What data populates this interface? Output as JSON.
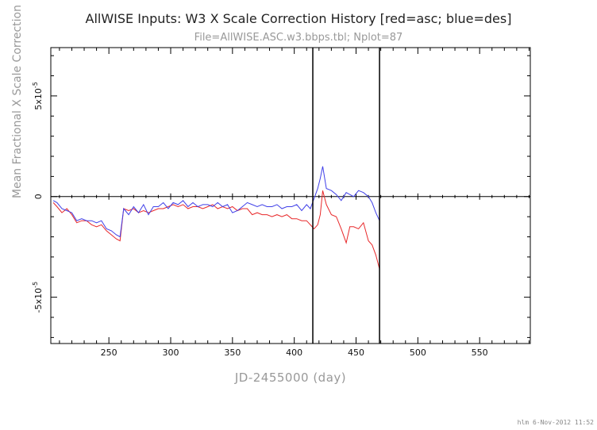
{
  "chart_data": {
    "type": "line",
    "title": "AllWISE Inputs: W3 X Scale Correction History [red=asc; blue=des]",
    "subtitle": "File=AllWISE.ASC.w3.bbps.tbl; Nplot=87",
    "xlabel": "JD-2455000 (day)",
    "ylabel": "Mean Fractional X Scale Correction",
    "xlim": [
      203,
      591
    ],
    "ylim": [
      -7.3e-05,
      7.4e-05
    ],
    "x_ticks": [
      250,
      300,
      350,
      400,
      450,
      500,
      550
    ],
    "y_tick_labels": [
      {
        "value": 5e-05,
        "mantissa": "5x10",
        "exp": "-5"
      },
      {
        "value": 0,
        "mantissa": "0",
        "exp": ""
      },
      {
        "value": -5e-05,
        "mantissa": "-5x10",
        "exp": "-5"
      }
    ],
    "vertical_lines": [
      415,
      469
    ],
    "series": [
      {
        "name": "asc",
        "color": "#e8282a",
        "x": [
          205,
          208,
          212,
          216,
          220,
          224,
          228,
          232,
          236,
          240,
          244,
          248,
          252,
          256,
          259,
          262,
          266,
          270,
          274,
          278,
          282,
          286,
          290,
          294,
          298,
          302,
          306,
          310,
          314,
          318,
          322,
          326,
          330,
          334,
          338,
          342,
          346,
          350,
          354,
          358,
          362,
          366,
          370,
          374,
          378,
          382,
          386,
          390,
          394,
          398,
          402,
          406,
          410,
          413,
          416,
          419,
          421,
          423,
          426,
          430,
          434,
          438,
          442,
          445,
          448,
          452,
          456,
          460,
          463,
          466,
          469
        ],
        "y": [
          -3e-06,
          -5e-06,
          -8e-06,
          -6e-06,
          -9e-06,
          -1.3e-05,
          -1.2e-05,
          -1.2e-05,
          -1.4e-05,
          -1.5e-05,
          -1.4e-05,
          -1.7e-05,
          -1.9e-05,
          -2.1e-05,
          -2.2e-05,
          -6e-06,
          -7e-06,
          -6e-06,
          -8e-06,
          -7e-06,
          -8e-06,
          -7e-06,
          -6e-06,
          -6e-06,
          -5e-06,
          -4e-06,
          -5e-06,
          -4e-06,
          -6e-06,
          -5e-06,
          -5e-06,
          -6e-06,
          -5e-06,
          -4e-06,
          -6e-06,
          -5e-06,
          -6e-06,
          -5e-06,
          -7e-06,
          -6e-06,
          -6e-06,
          -9e-06,
          -8e-06,
          -9e-06,
          -9e-06,
          -1e-05,
          -9e-06,
          -1e-05,
          -9e-06,
          -1.1e-05,
          -1.1e-05,
          -1.2e-05,
          -1.2e-05,
          -1.4e-05,
          -1.6e-05,
          -1.4e-05,
          -9e-06,
          3e-06,
          -4e-06,
          -9e-06,
          -1e-05,
          -1.6e-05,
          -2.3e-05,
          -1.5e-05,
          -1.5e-05,
          -1.6e-05,
          -1.3e-05,
          -2.2e-05,
          -2.4e-05,
          -2.9e-05,
          -3.6e-05
        ]
      },
      {
        "name": "des",
        "color": "#4040e8",
        "x": [
          205,
          208,
          212,
          216,
          220,
          224,
          228,
          232,
          236,
          240,
          244,
          248,
          252,
          256,
          259,
          262,
          266,
          270,
          274,
          278,
          282,
          286,
          290,
          294,
          298,
          302,
          306,
          310,
          314,
          318,
          322,
          326,
          330,
          334,
          338,
          342,
          346,
          350,
          354,
          358,
          362,
          366,
          370,
          374,
          378,
          382,
          386,
          390,
          394,
          398,
          402,
          406,
          410,
          413,
          416,
          419,
          421,
          423,
          426,
          430,
          434,
          438,
          442,
          445,
          448,
          452,
          456,
          460,
          463,
          466,
          469
        ],
        "y": [
          -2e-06,
          -3e-06,
          -6e-06,
          -7e-06,
          -8e-06,
          -1.2e-05,
          -1.1e-05,
          -1.2e-05,
          -1.2e-05,
          -1.3e-05,
          -1.2e-05,
          -1.6e-05,
          -1.7e-05,
          -1.9e-05,
          -2e-05,
          -6e-06,
          -9e-06,
          -5e-06,
          -8e-06,
          -4e-06,
          -9e-06,
          -5e-06,
          -5e-06,
          -3e-06,
          -6e-06,
          -3e-06,
          -4e-06,
          -2e-06,
          -5e-06,
          -3e-06,
          -5e-06,
          -4e-06,
          -4e-06,
          -5e-06,
          -3e-06,
          -5e-06,
          -4e-06,
          -8e-06,
          -7e-06,
          -5e-06,
          -3e-06,
          -4e-06,
          -5e-06,
          -4e-06,
          -5e-06,
          -5e-06,
          -4e-06,
          -6e-06,
          -5e-06,
          -5e-06,
          -4e-06,
          -7e-06,
          -4e-06,
          -6e-06,
          -1e-06,
          4e-06,
          9e-06,
          1.5e-05,
          4e-06,
          3e-06,
          1e-06,
          -2e-06,
          2e-06,
          1e-06,
          0.0,
          3e-06,
          2e-06,
          0.0,
          -3e-06,
          -8e-06,
          -1.2e-05
        ]
      }
    ]
  },
  "footer": "hlm  6-Nov-2012 11:52"
}
